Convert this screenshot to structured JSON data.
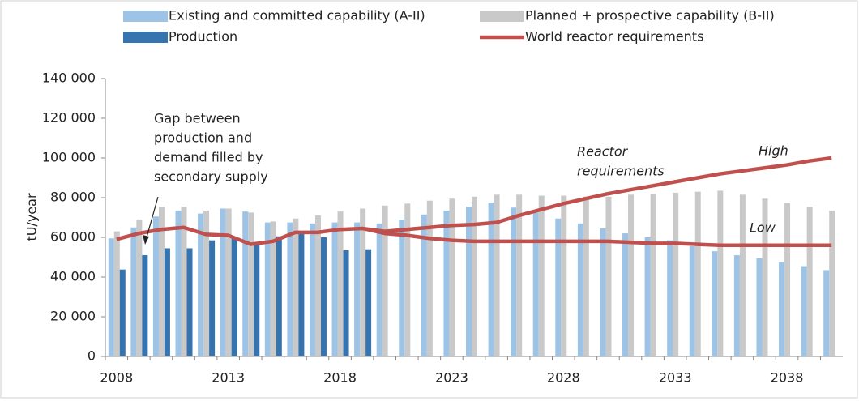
{
  "chart_data": {
    "type": "bar",
    "categories": [
      "2008",
      null,
      null,
      null,
      null,
      "2013",
      null,
      null,
      null,
      null,
      "2018",
      null,
      null,
      null,
      null,
      "2023",
      null,
      null,
      null,
      null,
      "2028",
      null,
      null,
      null,
      null,
      "2033",
      null,
      null,
      null,
      null,
      "2038",
      null,
      null
    ],
    "y_label": "tU/year",
    "ylim": [
      0,
      140000
    ],
    "yticks": [
      0,
      {
        "value": 20000,
        "label": "20 000"
      },
      {
        "value": 40000,
        "label": "40 000"
      },
      {
        "value": 60000,
        "label": "60 000"
      },
      {
        "value": 80000,
        "label": "80 000"
      },
      {
        "value": 100000,
        "label": "100 000"
      },
      {
        "value": 120000,
        "label": "120 000"
      },
      {
        "value": 140000,
        "label": "140 000"
      }
    ],
    "series": [
      {
        "name": "Existing and committed capability (A-II)",
        "type": "bar",
        "color": "#9dc3e6",
        "values": [
          59500,
          65000,
          70500,
          73500,
          72000,
          74500,
          73000,
          67500,
          67500,
          67000,
          67500,
          67500,
          67000,
          69000,
          71500,
          73500,
          75500,
          77500,
          75000,
          72500,
          69500,
          67000,
          64500,
          62000,
          60000,
          58500,
          55500,
          53000,
          51000,
          49500,
          47500,
          45500,
          43500
        ]
      },
      {
        "name": "Planned + prospective capability (B-II)",
        "type": "bar",
        "color": "#c9c9c9",
        "values": [
          63000,
          69000,
          75500,
          75500,
          73500,
          74500,
          72500,
          68000,
          69500,
          71000,
          73000,
          74500,
          76000,
          77000,
          78500,
          79500,
          80500,
          81500,
          81500,
          81000,
          81000,
          80500,
          80500,
          81500,
          82000,
          82500,
          83000,
          83500,
          81500,
          79500,
          77500,
          75500,
          73500
        ]
      },
      {
        "name": "Production",
        "type": "bar",
        "color": "#3674b0",
        "values": [
          43800,
          51000,
          54500,
          54500,
          58500,
          59500,
          56500,
          60500,
          62000,
          60000,
          53500,
          54000,
          null,
          null,
          null,
          null,
          null,
          null,
          null,
          null,
          null,
          null,
          null,
          null,
          null,
          null,
          null,
          null,
          null,
          null,
          null,
          null,
          null
        ]
      },
      {
        "name": "World reactor requirements",
        "type": "line",
        "color": "#c0504d",
        "values": [
          59000,
          62000,
          64000,
          65000,
          61500,
          61000,
          56500,
          58000,
          62500,
          62500,
          64000,
          64500,
          63000,
          64000,
          65000,
          66000,
          66500,
          67500,
          71000,
          74000,
          77000,
          79500,
          82000,
          84000,
          86000,
          88000,
          90000,
          92000,
          93500,
          95000,
          96500,
          98500,
          100000
        ],
        "values_low": [
          null,
          null,
          null,
          null,
          null,
          null,
          null,
          null,
          null,
          null,
          null,
          64500,
          62000,
          61000,
          59500,
          58500,
          58000,
          58000,
          58000,
          58000,
          58000,
          58000,
          58000,
          57500,
          57000,
          57000,
          56500,
          56000,
          56000,
          56000,
          56000,
          56000,
          56000
        ]
      }
    ],
    "annotations": [
      {
        "lines": [
          "Gap between",
          "production and",
          "demand filled by",
          "secondary supply"
        ],
        "italic": false
      },
      {
        "lines": [
          "Reactor",
          "requirements"
        ],
        "italic": true
      },
      {
        "lines": [
          "High"
        ],
        "italic": true
      },
      {
        "lines": [
          "Low"
        ],
        "italic": true
      }
    ]
  }
}
